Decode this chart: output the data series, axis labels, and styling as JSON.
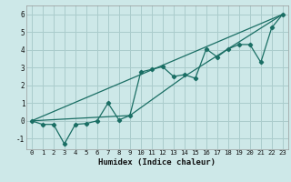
{
  "xlabel": "Humidex (Indice chaleur)",
  "bg_color": "#cde8e8",
  "grid_color": "#aacccc",
  "line_color": "#1a6e64",
  "xlim": [
    -0.5,
    23.5
  ],
  "ylim": [
    -1.6,
    6.5
  ],
  "xticks": [
    0,
    1,
    2,
    3,
    4,
    5,
    6,
    7,
    8,
    9,
    10,
    11,
    12,
    13,
    14,
    15,
    16,
    17,
    18,
    19,
    20,
    21,
    22,
    23
  ],
  "yticks": [
    -1,
    0,
    1,
    2,
    3,
    4,
    5,
    6
  ],
  "line1_x": [
    0,
    1,
    2,
    3,
    4,
    5,
    6,
    7,
    8,
    9,
    10,
    11,
    12,
    13,
    14,
    15,
    16,
    17,
    18,
    19,
    20,
    21,
    22,
    23
  ],
  "line1_y": [
    0.0,
    -0.2,
    -0.2,
    -1.3,
    -0.2,
    -0.15,
    0.0,
    1.0,
    0.05,
    0.3,
    2.75,
    2.9,
    3.05,
    2.5,
    2.6,
    2.4,
    4.05,
    3.6,
    4.05,
    4.3,
    4.3,
    3.3,
    5.25,
    6.0
  ],
  "line2_x": [
    0,
    23
  ],
  "line2_y": [
    0.0,
    6.0
  ],
  "line3_x": [
    0,
    9,
    14,
    23
  ],
  "line3_y": [
    0.0,
    0.3,
    2.5,
    6.0
  ]
}
